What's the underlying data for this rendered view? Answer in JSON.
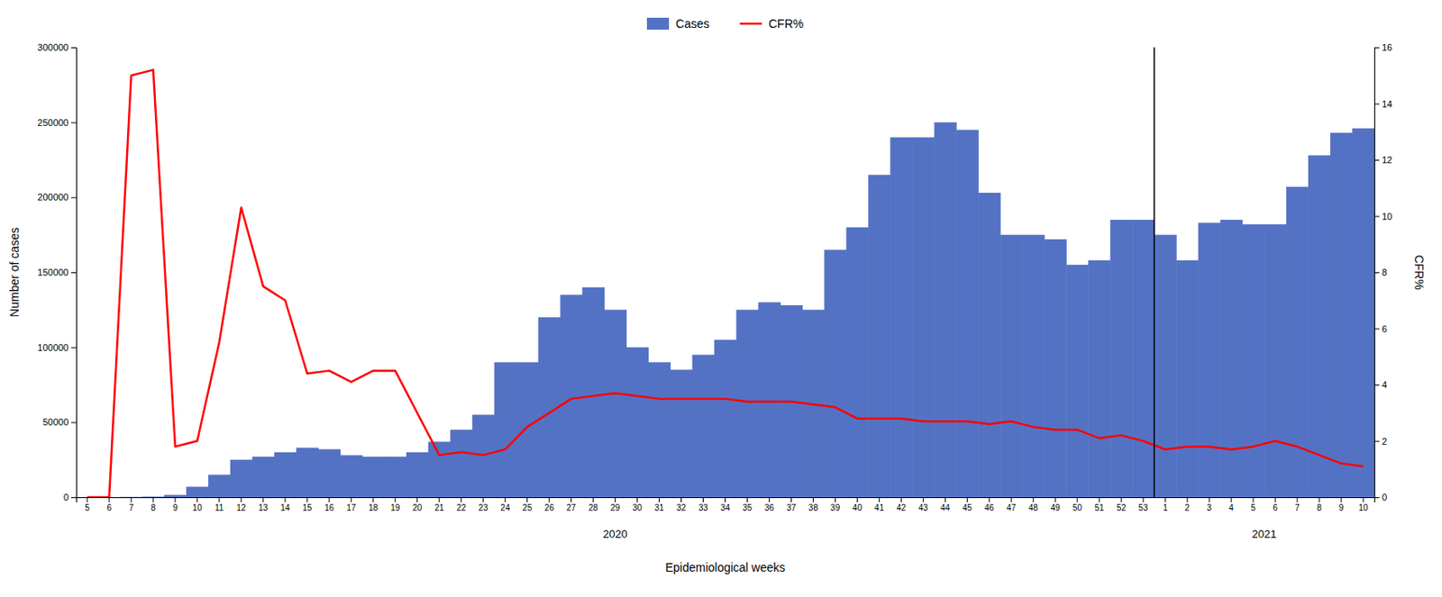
{
  "chart_data": {
    "type": "bar",
    "categories": [
      "5",
      "6",
      "7",
      "8",
      "9",
      "10",
      "11",
      "12",
      "13",
      "14",
      "15",
      "16",
      "17",
      "18",
      "19",
      "20",
      "21",
      "22",
      "23",
      "24",
      "25",
      "26",
      "27",
      "28",
      "29",
      "30",
      "31",
      "32",
      "33",
      "34",
      "35",
      "36",
      "37",
      "38",
      "39",
      "40",
      "41",
      "42",
      "43",
      "44",
      "45",
      "46",
      "47",
      "48",
      "49",
      "50",
      "51",
      "52",
      "53",
      "1",
      "2",
      "3",
      "4",
      "5",
      "6",
      "7",
      "8",
      "9",
      "10"
    ],
    "series": [
      {
        "name": "Cases",
        "color": "#5472c4",
        "type": "bar",
        "values": [
          50,
          100,
          200,
          400,
          1500,
          7000,
          15000,
          25000,
          27000,
          30000,
          33000,
          32000,
          28000,
          27000,
          27000,
          30000,
          37000,
          45000,
          55000,
          90000,
          90000,
          120000,
          135000,
          140000,
          125000,
          100000,
          90000,
          85000,
          95000,
          105000,
          125000,
          130000,
          128000,
          125000,
          165000,
          180000,
          215000,
          240000,
          240000,
          250000,
          245000,
          203000,
          175000,
          175000,
          172000,
          155000,
          158000,
          185000,
          185000,
          175000,
          158000,
          183000,
          185000,
          182000,
          182000,
          207000,
          228000,
          243000,
          246000
        ]
      },
      {
        "name": "CFR%",
        "color": "#ff0000",
        "type": "line",
        "axis": "y2",
        "values": [
          0.0,
          0.0,
          15.0,
          15.2,
          1.8,
          2.0,
          5.5,
          10.3,
          7.5,
          7.0,
          4.4,
          4.5,
          4.1,
          4.5,
          4.5,
          3.0,
          1.5,
          1.6,
          1.5,
          1.7,
          2.5,
          3.0,
          3.5,
          3.6,
          3.7,
          3.6,
          3.5,
          3.5,
          3.5,
          3.5,
          3.4,
          3.4,
          3.4,
          3.3,
          3.2,
          2.8,
          2.8,
          2.8,
          2.7,
          2.7,
          2.7,
          2.6,
          2.7,
          2.5,
          2.4,
          2.4,
          2.1,
          2.2,
          2.0,
          1.7,
          1.8,
          1.8,
          1.7,
          1.8,
          2.0,
          1.8,
          1.5,
          1.2,
          1.1
        ]
      }
    ],
    "ylim": [
      0,
      300000
    ],
    "yticks": [
      0,
      50000,
      100000,
      150000,
      200000,
      250000,
      300000
    ],
    "y2lim": [
      0,
      16
    ],
    "y2ticks": [
      0,
      2,
      4,
      6,
      8,
      10,
      12,
      14,
      16
    ],
    "ylabel": "Number of cases",
    "y2label": "CFR%",
    "xlabel": "Epidemiological weeks",
    "annotations": [
      "2020",
      "2021"
    ],
    "legend": "top"
  }
}
